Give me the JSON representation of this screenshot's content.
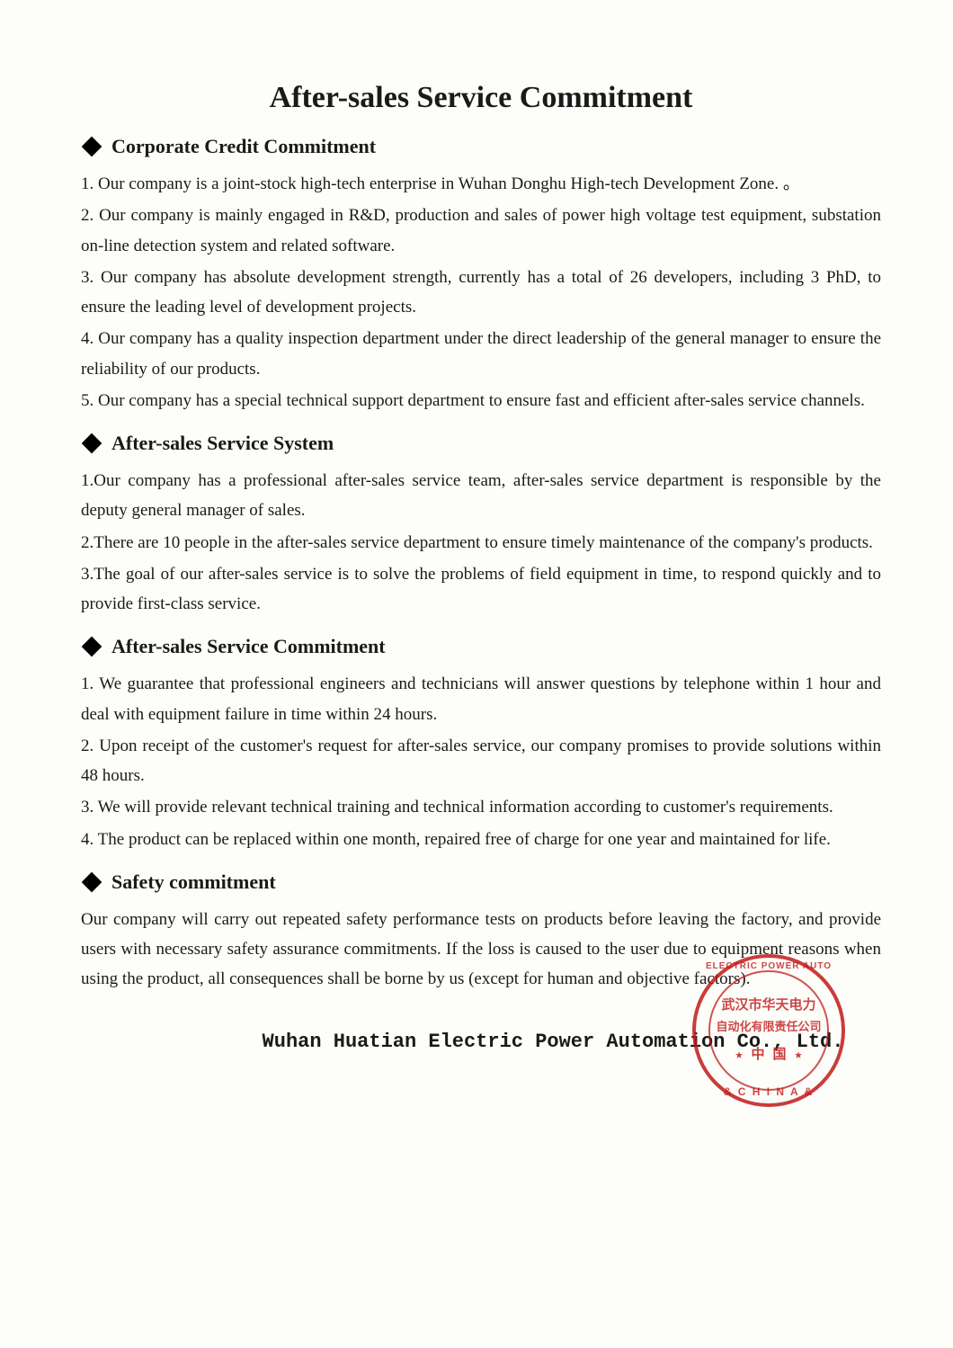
{
  "colors": {
    "page_bg": "#fdfdf9",
    "text": "#1a1a1a",
    "stamp_red": "#c01a1a"
  },
  "typography": {
    "title_fontsize_pt": 26,
    "heading_fontsize_pt": 17,
    "body_fontsize_pt": 14,
    "signature_fontsize_pt": 17,
    "body_line_height": 1.75,
    "body_font": "Times New Roman",
    "signature_font": "Courier New"
  },
  "title": "After-sales Service Commitment",
  "sections": [
    {
      "heading": "Corporate Credit Commitment",
      "items": [
        "1. Our company is a joint-stock high-tech enterprise in Wuhan Donghu High-tech Development Zone. 。",
        "2. Our company is mainly engaged in R&D, production and sales of power high voltage test equipment, substation on-line detection system and related software.",
        "3. Our company has absolute development strength, currently has a total of 26 developers, including 3 PhD, to ensure the leading level of development projects.",
        "4. Our company has a quality inspection department under the direct leadership of the general manager to ensure the reliability of our products.",
        "5. Our company has a special technical support department to ensure fast and efficient after-sales service channels."
      ]
    },
    {
      "heading": "After-sales Service System",
      "items": [
        "1.Our company has a professional after-sales service team, after-sales service department is responsible by the deputy general manager of sales.",
        "2.There are 10 people in the after-sales service department to ensure timely maintenance of the company's products.",
        "3.The goal of our after-sales service is to solve the problems of field equipment in time, to respond quickly and to provide first-class service."
      ]
    },
    {
      "heading": "After-sales Service Commitment",
      "items": [
        "1. We guarantee that professional engineers and technicians will answer questions by telephone within 1 hour and deal with equipment failure in time within 24 hours.",
        "2. Upon receipt of the customer's request for after-sales service, our company promises to provide solutions within 48 hours.",
        "3. We will provide relevant technical training and technical information according to customer's requirements.",
        "4. The product can be replaced within one month, repaired free of charge for one year and maintained for life."
      ]
    },
    {
      "heading": "Safety commitment",
      "items": [
        "Our company will carry out repeated safety performance tests on products before leaving the factory, and provide users with necessary safety assurance commitments. If the loss is caused to the user due to equipment reasons when using the product, all consequences shall be borne by us (except for human and objective factors)."
      ]
    }
  ],
  "signature": {
    "company": "Wuhan Huatian Electric Power Automation Co., Ltd."
  },
  "stamp": {
    "top_arc": "ELECTRIC POWER AUTO",
    "bottom_arc": "& C H I N A &",
    "cn_line1": "武汉市华天电力",
    "cn_line2": "自动化有限责任公司",
    "cn_line3": "★ 中 国 ★"
  }
}
